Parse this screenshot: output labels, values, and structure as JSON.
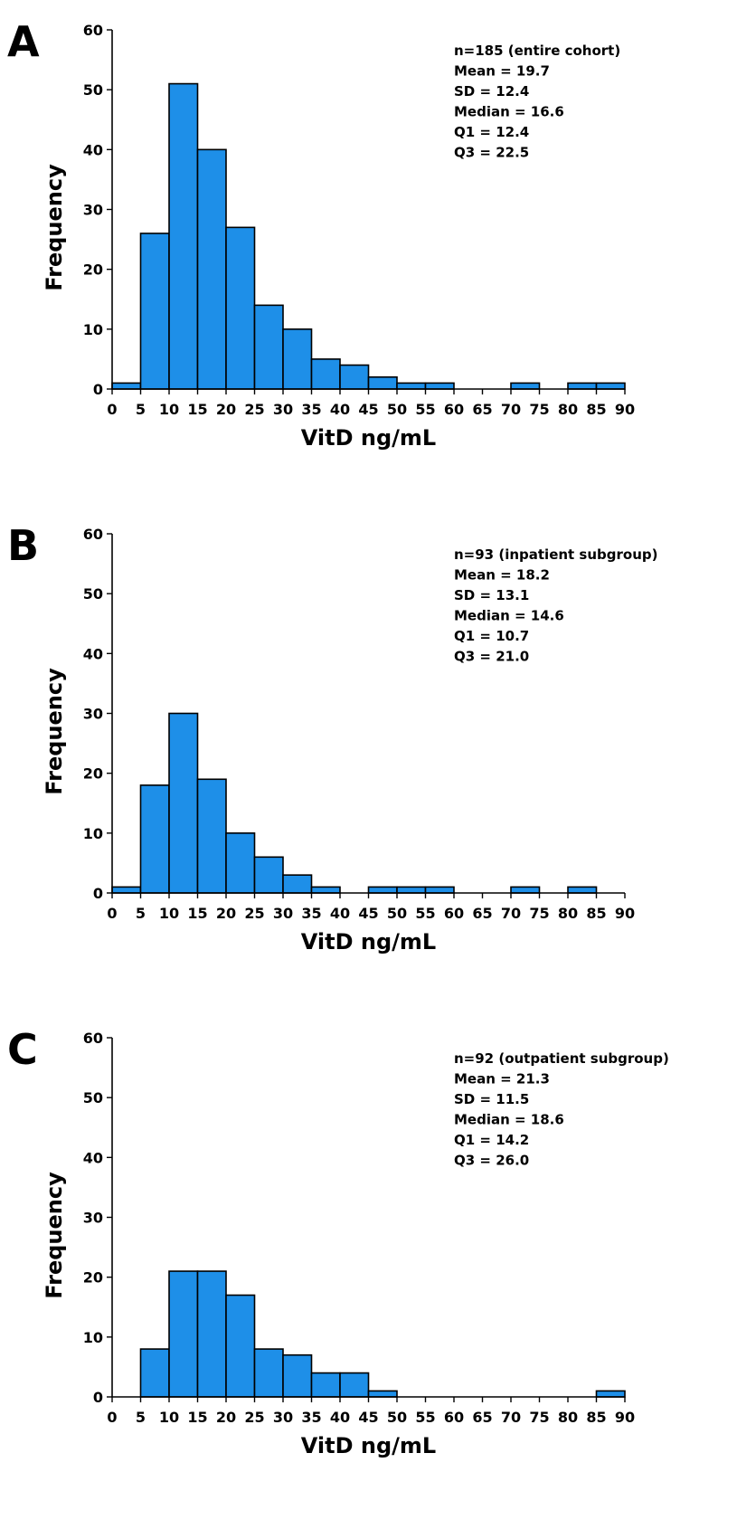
{
  "chart_data": [
    {
      "type": "bar",
      "panel": "A",
      "xlabel": "VitD ng/mL",
      "ylabel": "Frequency",
      "ylim": [
        0,
        60
      ],
      "yticks": [
        "0",
        "10",
        "20",
        "30",
        "40",
        "50",
        "60"
      ],
      "xlim": [
        0,
        90
      ],
      "xticks": [
        "0",
        "5",
        "10",
        "15",
        "20",
        "25",
        "30",
        "35",
        "40",
        "45",
        "50",
        "55",
        "60",
        "65",
        "70",
        "75",
        "80",
        "85",
        "90"
      ],
      "bin_width": 5,
      "bar_color": "#1e8fe8",
      "values": [
        1,
        26,
        51,
        40,
        27,
        14,
        10,
        5,
        4,
        2,
        1,
        1,
        0,
        0,
        1,
        0,
        1,
        1
      ],
      "stats": [
        "n=185 (entire cohort)",
        "Mean = 19.7",
        "SD = 12.4",
        "Median = 16.6",
        "Q1 = 12.4",
        "Q3 = 22.5"
      ]
    },
    {
      "type": "bar",
      "panel": "B",
      "xlabel": "VitD ng/mL",
      "ylabel": "Frequency",
      "ylim": [
        0,
        60
      ],
      "yticks": [
        "0",
        "10",
        "20",
        "30",
        "40",
        "50",
        "60"
      ],
      "xlim": [
        0,
        90
      ],
      "xticks": [
        "0",
        "5",
        "10",
        "15",
        "20",
        "25",
        "30",
        "35",
        "40",
        "45",
        "50",
        "55",
        "60",
        "65",
        "70",
        "75",
        "80",
        "85",
        "90"
      ],
      "bin_width": 5,
      "bar_color": "#1e8fe8",
      "values": [
        1,
        18,
        30,
        19,
        10,
        6,
        3,
        1,
        0,
        1,
        1,
        1,
        0,
        0,
        1,
        0,
        1,
        0
      ],
      "stats": [
        "n=93 (inpatient subgroup)",
        "Mean = 18.2",
        "SD = 13.1",
        "Median = 14.6",
        "Q1 = 10.7",
        "Q3 = 21.0"
      ]
    },
    {
      "type": "bar",
      "panel": "C",
      "xlabel": "VitD ng/mL",
      "ylabel": "Frequency",
      "ylim": [
        0,
        60
      ],
      "yticks": [
        "0",
        "10",
        "20",
        "30",
        "40",
        "50",
        "60"
      ],
      "xlim": [
        0,
        90
      ],
      "xticks": [
        "0",
        "5",
        "10",
        "15",
        "20",
        "25",
        "30",
        "35",
        "40",
        "45",
        "50",
        "55",
        "60",
        "65",
        "70",
        "75",
        "80",
        "85",
        "90"
      ],
      "bin_width": 5,
      "bar_color": "#1e8fe8",
      "values": [
        0,
        8,
        21,
        21,
        17,
        8,
        7,
        4,
        4,
        1,
        0,
        0,
        0,
        0,
        0,
        0,
        0,
        1
      ],
      "stats": [
        "n=92 (outpatient subgroup)",
        "Mean = 21.3",
        "SD = 11.5",
        "Median = 18.6",
        "Q1 = 14.2",
        "Q3 = 26.0"
      ]
    }
  ]
}
